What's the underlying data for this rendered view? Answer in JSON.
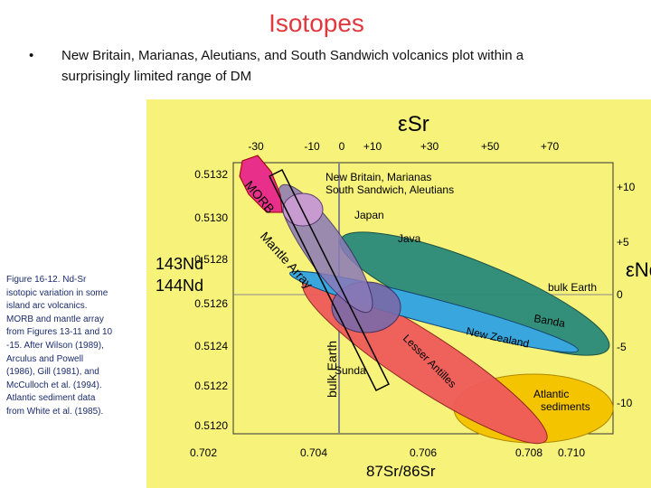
{
  "title": "Isotopes",
  "bullet": [
    "New Britain, Marianas, Aleutians, and South Sandwich volcanics plot within a",
    "surprisingly limited range of DM"
  ],
  "caption": [
    "Figure 16-12. Nd-Sr",
    "isotopic variation in some",
    "island arc volcanics.",
    "MORB and mantle array",
    "from Figures 13-11 and 10",
    "-15. After Wilson (1989),",
    "Arculus and Powell",
    "(1986), Gill (1981), and",
    "McCulloch et al. (1994).",
    "Atlantic sediment data",
    "from White et al. (1985)."
  ],
  "figure": {
    "top_axis": {
      "label": "εSr",
      "ticks": [
        "-30",
        "-10",
        "0",
        "+10",
        "+30",
        "+50",
        "+70"
      ]
    },
    "right_axis": {
      "label": "εNd",
      "ticks": [
        "+10",
        "+5",
        "0",
        "-5",
        "-10"
      ]
    },
    "left_axis": {
      "label": [
        "143Nd",
        "144Nd"
      ],
      "ticks": [
        "0.5132",
        "0.5130",
        "0.5128",
        "0.5126",
        "0.5124",
        "0.5122",
        "0.5120"
      ]
    },
    "bottom_axis": {
      "label": "87Sr/86Sr",
      "ticks": [
        "0.702",
        "0.704",
        "0.706",
        "0.708",
        "0.710"
      ]
    },
    "fields": [
      "New Britain, Marianas",
      "South Sandwich, Aleutians",
      "Japan",
      "Java",
      "bulk Earth",
      "Banda",
      "New Zealand",
      "Sunda",
      "Lesser Antilles",
      "Atlantic",
      "sediments",
      "MORB",
      "Mantle Array",
      "bulk Earth"
    ]
  }
}
